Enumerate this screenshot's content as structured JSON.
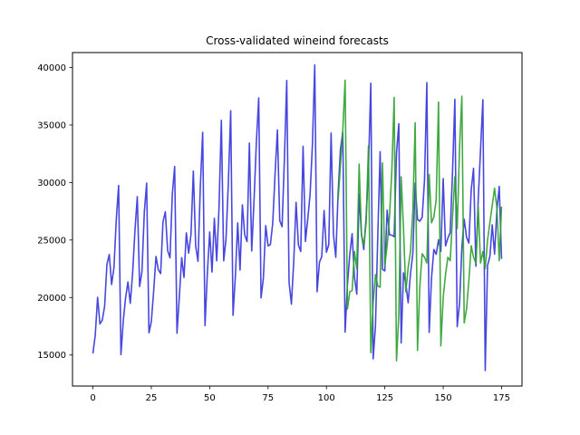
{
  "chart_data": {
    "type": "line",
    "title": "Cross-validated wineind forecasts",
    "xlabel": "",
    "ylabel": "",
    "xlim": [
      -8.75,
      183.75
    ],
    "ylim": [
      12300,
      41300
    ],
    "xticks": [
      0,
      25,
      50,
      75,
      100,
      125,
      150,
      175
    ],
    "yticks": [
      15000,
      20000,
      25000,
      30000,
      35000,
      40000
    ],
    "grid": false,
    "legend": "none",
    "series": [
      {
        "color": "#3333dd",
        "x": [
          0,
          1,
          2,
          3,
          4,
          5,
          6,
          7,
          8,
          9,
          10,
          11,
          12,
          13,
          14,
          15,
          16,
          17,
          18,
          19,
          20,
          21,
          22,
          23,
          24,
          25,
          26,
          27,
          28,
          29,
          30,
          31,
          32,
          33,
          34,
          35,
          36,
          37,
          38,
          39,
          40,
          41,
          42,
          43,
          44,
          45,
          46,
          47,
          48,
          49,
          50,
          51,
          52,
          53,
          54,
          55,
          56,
          57,
          58,
          59,
          60,
          61,
          62,
          63,
          64,
          65,
          66,
          67,
          68,
          69,
          70,
          71,
          72,
          73,
          74,
          75,
          76,
          77,
          78,
          79,
          80,
          81,
          82,
          83,
          84,
          85,
          86,
          87,
          88,
          89,
          90,
          91,
          92,
          93,
          94,
          95,
          96,
          97,
          98,
          99,
          100,
          101,
          102,
          103,
          104,
          105,
          106,
          107,
          108,
          109,
          110,
          111,
          112,
          113,
          114,
          115,
          116,
          117,
          118,
          119,
          120,
          121,
          122,
          123,
          124,
          125,
          126,
          127,
          128,
          129,
          130,
          131,
          132,
          133,
          134,
          135,
          136,
          137,
          138,
          139,
          140,
          141,
          142,
          143,
          144,
          145,
          146,
          147,
          148,
          149,
          150,
          151,
          152,
          153,
          154,
          155,
          156,
          157,
          158,
          159,
          160,
          161,
          162,
          163,
          164,
          165,
          166,
          167,
          168,
          169,
          170,
          171,
          172,
          173,
          174,
          175
        ],
        "y": [
          15136,
          16733,
          20016,
          17708,
          18019,
          19227,
          22893,
          23739,
          21133,
          22591,
          26786,
          29740,
          15028,
          17977,
          20008,
          21354,
          19498,
          22125,
          25817,
          28779,
          20960,
          22254,
          27392,
          29945,
          16933,
          17892,
          20533,
          23569,
          22417,
          22084,
          26580,
          27454,
          24081,
          23451,
          28991,
          31386,
          16896,
          20045,
          23471,
          21747,
          25621,
          23859,
          25500,
          30998,
          24475,
          23145,
          29701,
          34365,
          17556,
          22077,
          25702,
          22214,
          26886,
          23191,
          27831,
          35406,
          23195,
          25110,
          30009,
          36242,
          18450,
          21845,
          26488,
          22394,
          28057,
          25451,
          24872,
          33424,
          24052,
          28449,
          33533,
          37351,
          19969,
          21701,
          26249,
          24493,
          24603,
          26485,
          30723,
          34569,
          26689,
          26157,
          32064,
          38870,
          21337,
          19419,
          23166,
          28286,
          24570,
          24001,
          33151,
          24878,
          26804,
          28967,
          33311,
          40226,
          20504,
          23060,
          23562,
          27562,
          23940,
          24584,
          34303,
          25517,
          23494,
          29095,
          32903,
          34379,
          16991,
          21109,
          23740,
          25552,
          21752,
          20294,
          29009,
          25500,
          24166,
          26960,
          31222,
          38641,
          14672,
          17543,
          25453,
          32683,
          22449,
          22316,
          27595,
          25451,
          25421,
          25288,
          32568,
          35110,
          16052,
          22146,
          21198,
          19543,
          22084,
          23816,
          29961,
          26773,
          26635,
          26972,
          30207,
          38687,
          16974,
          21697,
          24179,
          23757,
          25013,
          24019,
          30345,
          24488,
          25156,
          25650,
          30923,
          37240,
          17466,
          19463,
          24352,
          26805,
          25236,
          24735,
          29356,
          31234,
          22724,
          28496,
          32857,
          37198,
          13652,
          22784,
          23565,
          26323,
          23779,
          27549,
          29660,
          23356
        ]
      },
      {
        "color": "#2ca02c",
        "x": [
          105,
          106,
          107,
          108,
          109,
          110,
          111,
          112,
          113,
          114,
          115,
          116,
          117,
          118,
          119,
          120,
          121,
          122,
          123,
          124,
          125,
          126,
          127,
          128,
          129,
          130,
          131,
          132,
          133,
          134,
          135,
          136,
          137,
          138,
          139,
          140,
          141,
          142,
          143,
          144,
          145,
          146,
          147,
          148,
          149,
          150,
          151,
          152,
          153,
          154,
          155,
          156,
          157,
          158,
          159,
          160,
          161,
          162,
          163,
          164,
          165,
          166,
          167,
          168,
          169,
          170,
          171,
          172,
          173,
          174,
          175
        ],
        "y": [
          28500,
          31500,
          34500,
          38900,
          19000,
          20500,
          20600,
          24000,
          22500,
          31600,
          25500,
          24500,
          26500,
          33200,
          15200,
          19500,
          22000,
          21000,
          20900,
          31700,
          22800,
          24500,
          27000,
          31000,
          37400,
          14500,
          18500,
          30500,
          26000,
          20500,
          22600,
          24000,
          27500,
          35200,
          15400,
          21000,
          23800,
          23500,
          23000,
          30700,
          26500,
          27000,
          28500,
          37000,
          15800,
          20000,
          22000,
          23500,
          23200,
          27000,
          30500,
          26000,
          33000,
          37500,
          17800,
          19000,
          21500,
          24500,
          23500,
          23000,
          27900,
          23000,
          24000,
          22500,
          25000,
          26500,
          28000,
          29500,
          27800,
          23200,
          27900
        ]
      }
    ]
  }
}
